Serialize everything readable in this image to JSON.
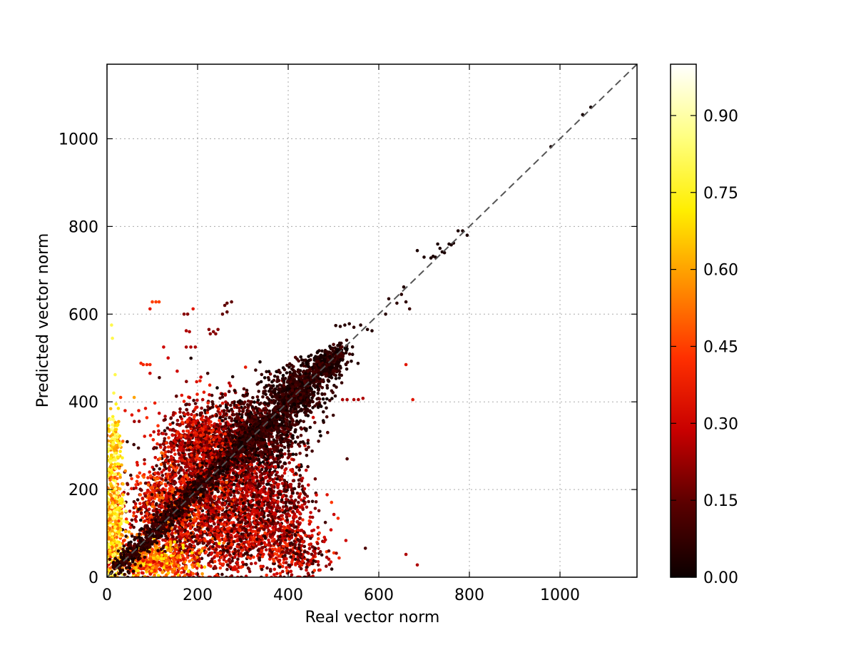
{
  "chart_data": {
    "type": "scatter",
    "title": "",
    "xlabel": "Real vector norm",
    "ylabel": "Predicted vector norm",
    "xlim": [
      0,
      1170
    ],
    "ylim": [
      0,
      1170
    ],
    "x_ticks": [
      0,
      200,
      400,
      600,
      800,
      1000
    ],
    "y_ticks": [
      0,
      200,
      400,
      600,
      800,
      1000
    ],
    "grid": true,
    "reference_line": {
      "style": "dashed",
      "color": "#555555",
      "from": [
        0,
        0
      ],
      "to": [
        1170,
        1170
      ]
    },
    "colorbar": {
      "colormap": "hot",
      "range": [
        0,
        1
      ],
      "ticks": [
        "0.00",
        "0.15",
        "0.30",
        "0.45",
        "0.60",
        "0.75",
        "0.90"
      ],
      "tick_values": [
        0.0,
        0.15,
        0.3,
        0.45,
        0.6,
        0.75,
        0.9
      ],
      "stops": [
        "#0b0000",
        "#5a0000",
        "#c80000",
        "#ff3000",
        "#ff9000",
        "#ffee00",
        "#ffff80",
        "#ffffff"
      ]
    },
    "points": [
      [
        980,
        982,
        0.02
      ],
      [
        1050,
        1055,
        0.02
      ],
      [
        1068,
        1072,
        0.02
      ],
      [
        685,
        745,
        0.03
      ],
      [
        700,
        730,
        0.03
      ],
      [
        715,
        728,
        0.03
      ],
      [
        720,
        732,
        0.03
      ],
      [
        725,
        730,
        0.03
      ],
      [
        735,
        750,
        0.03
      ],
      [
        745,
        740,
        0.03
      ],
      [
        755,
        760,
        0.03
      ],
      [
        765,
        762,
        0.03
      ],
      [
        775,
        790,
        0.03
      ],
      [
        785,
        790,
        0.03
      ],
      [
        795,
        780,
        0.03
      ],
      [
        730,
        760,
        0.03
      ],
      [
        740,
        742,
        0.03
      ],
      [
        760,
        758,
        0.03
      ],
      [
        622,
        635,
        0.06
      ],
      [
        640,
        625,
        0.06
      ],
      [
        650,
        645,
        0.05
      ],
      [
        660,
        628,
        0.06
      ],
      [
        668,
        612,
        0.08
      ],
      [
        655,
        662,
        0.04
      ],
      [
        615,
        600,
        0.05
      ],
      [
        575,
        565,
        0.04
      ],
      [
        585,
        562,
        0.04
      ],
      [
        560,
        575,
        0.05
      ],
      [
        545,
        570,
        0.06
      ],
      [
        535,
        578,
        0.05
      ],
      [
        525,
        575,
        0.05
      ],
      [
        515,
        572,
        0.05
      ],
      [
        505,
        574,
        0.05
      ],
      [
        520,
        405,
        0.25
      ],
      [
        530,
        405,
        0.25
      ],
      [
        545,
        405,
        0.25
      ],
      [
        555,
        405,
        0.25
      ],
      [
        565,
        408,
        0.25
      ],
      [
        675,
        405,
        0.35
      ],
      [
        660,
        485,
        0.35
      ],
      [
        660,
        52,
        0.25
      ],
      [
        685,
        28,
        0.25
      ],
      [
        530,
        270,
        0.12
      ],
      [
        265,
        625,
        0.15
      ],
      [
        260,
        620,
        0.15
      ],
      [
        275,
        628,
        0.15
      ],
      [
        255,
        600,
        0.15
      ],
      [
        265,
        605,
        0.15
      ],
      [
        225,
        565,
        0.2
      ],
      [
        228,
        555,
        0.2
      ],
      [
        235,
        560,
        0.2
      ],
      [
        240,
        555,
        0.2
      ],
      [
        245,
        565,
        0.2
      ],
      [
        170,
        600,
        0.2
      ],
      [
        178,
        600,
        0.2
      ],
      [
        175,
        562,
        0.25
      ],
      [
        182,
        560,
        0.25
      ],
      [
        185,
        525,
        0.25
      ],
      [
        175,
        525,
        0.25
      ],
      [
        195,
        525,
        0.25
      ],
      [
        190,
        612,
        0.35
      ],
      [
        100,
        628,
        0.45
      ],
      [
        108,
        628,
        0.45
      ],
      [
        115,
        628,
        0.45
      ],
      [
        95,
        612,
        0.35
      ],
      [
        80,
        485,
        0.4
      ],
      [
        88,
        485,
        0.4
      ],
      [
        95,
        485,
        0.4
      ],
      [
        75,
        488,
        0.4
      ],
      [
        125,
        525,
        0.3
      ],
      [
        135,
        500,
        0.3
      ],
      [
        155,
        470,
        0.3
      ],
      [
        95,
        465,
        0.3
      ],
      [
        165,
        415,
        0.35
      ],
      [
        10,
        575,
        0.8
      ],
      [
        12,
        545,
        0.8
      ],
      [
        18,
        462,
        0.8
      ],
      [
        15,
        420,
        0.8
      ],
      [
        20,
        395,
        0.75
      ],
      [
        25,
        385,
        0.7
      ],
      [
        8,
        360,
        0.85
      ],
      [
        30,
        410,
        0.45
      ],
      [
        40,
        380,
        0.35
      ],
      [
        55,
        370,
        0.35
      ],
      [
        70,
        380,
        0.35
      ],
      [
        85,
        385,
        0.35
      ],
      [
        60,
        410,
        0.6
      ],
      [
        35,
        310,
        0.5
      ]
    ],
    "clusters": [
      {
        "cx": 250,
        "cy": 250,
        "rx": 120,
        "ry": 130,
        "n": 1600,
        "cmin": 0.02,
        "cmax": 0.4
      },
      {
        "cx": 340,
        "cy": 330,
        "rx": 90,
        "ry": 80,
        "n": 900,
        "cmin": 0.0,
        "cmax": 0.18
      },
      {
        "cx": 150,
        "cy": 150,
        "rx": 95,
        "ry": 110,
        "n": 1100,
        "cmin": 0.05,
        "cmax": 0.55
      },
      {
        "cx": 420,
        "cy": 430,
        "rx": 60,
        "ry": 55,
        "n": 500,
        "cmin": 0.0,
        "cmax": 0.12
      },
      {
        "cx": 300,
        "cy": 90,
        "rx": 130,
        "ry": 80,
        "n": 900,
        "cmin": 0.05,
        "cmax": 0.45
      },
      {
        "cx": 420,
        "cy": 60,
        "rx": 60,
        "ry": 55,
        "n": 260,
        "cmin": 0.05,
        "cmax": 0.45
      },
      {
        "cx": 100,
        "cy": 40,
        "rx": 85,
        "ry": 35,
        "n": 500,
        "cmin": 0.3,
        "cmax": 0.75
      },
      {
        "cx": 15,
        "cy": 120,
        "rx": 18,
        "ry": 130,
        "n": 500,
        "cmin": 0.45,
        "cmax": 0.9
      },
      {
        "cx": 15,
        "cy": 300,
        "rx": 15,
        "ry": 60,
        "n": 120,
        "cmin": 0.55,
        "cmax": 0.9
      },
      {
        "cx": 480,
        "cy": 480,
        "rx": 35,
        "ry": 30,
        "n": 250,
        "cmin": 0.0,
        "cmax": 0.08
      },
      {
        "cx": 200,
        "cy": 320,
        "rx": 70,
        "ry": 60,
        "n": 350,
        "cmin": 0.1,
        "cmax": 0.45
      },
      {
        "cx": 360,
        "cy": 180,
        "rx": 80,
        "ry": 70,
        "n": 400,
        "cmin": 0.05,
        "cmax": 0.35
      }
    ],
    "diagonal_band": {
      "from": 20,
      "to": 520,
      "n": 1500,
      "spread": 12,
      "cmin": 0.0,
      "cmax": 0.12
    }
  }
}
